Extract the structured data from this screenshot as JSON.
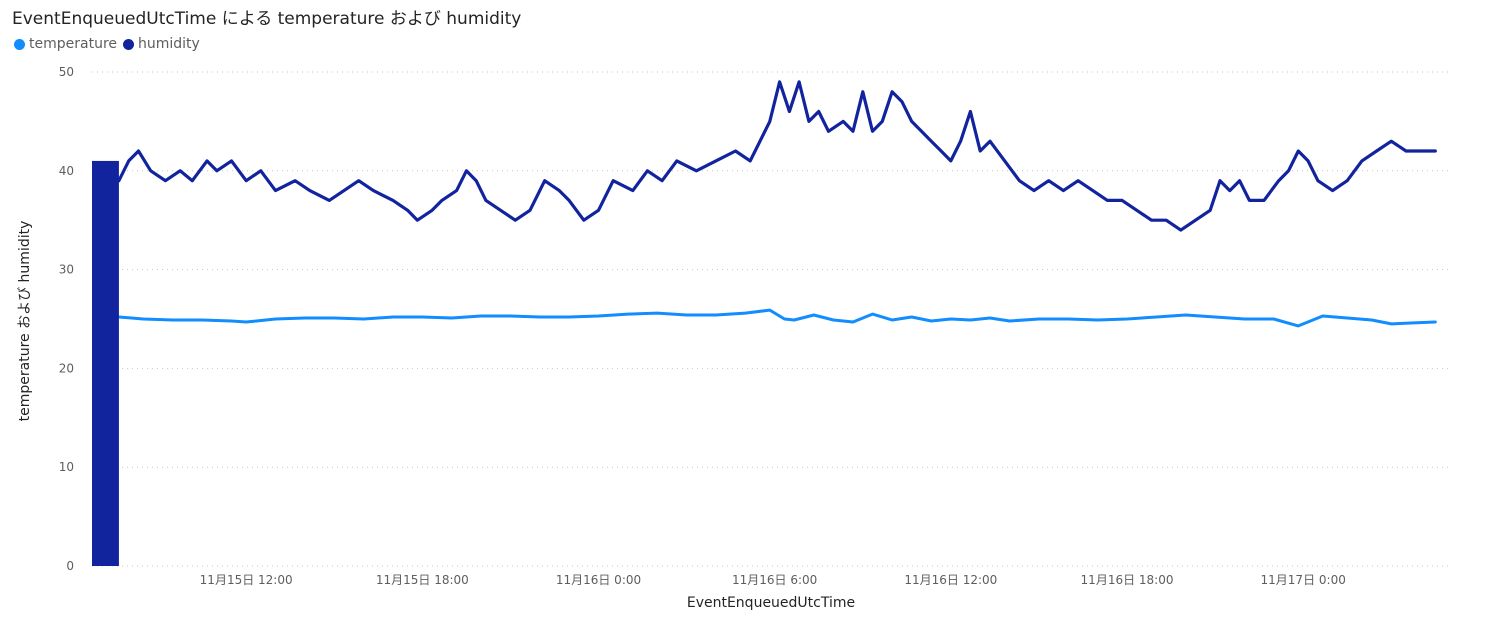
{
  "chart_data": {
    "type": "line",
    "title": "EventEnqueuedUtcTime による temperature および humidity",
    "xlabel": "EventEnqueuedUtcTime",
    "ylabel": "temperature および humidity",
    "ylim": [
      0,
      50
    ],
    "yticks": [
      "0",
      "10",
      "20",
      "30",
      "40",
      "50"
    ],
    "xlim": [
      "2019-11-15T06:45",
      "2019-11-17T05:00"
    ],
    "xticks": [
      {
        "t": "2019-11-15T12:00",
        "label": "11月15日 12:00"
      },
      {
        "t": "2019-11-15T18:00",
        "label": "11月15日 18:00"
      },
      {
        "t": "2019-11-16T00:00",
        "label": "11月16日 0:00"
      },
      {
        "t": "2019-11-16T06:00",
        "label": "11月16日 6:00"
      },
      {
        "t": "2019-11-16T12:00",
        "label": "11月16日 12:00"
      },
      {
        "t": "2019-11-16T18:00",
        "label": "11月16日 18:00"
      },
      {
        "t": "2019-11-17T00:00",
        "label": "11月17日 0:00"
      }
    ],
    "grid": true,
    "legend_position": "top-left",
    "series": [
      {
        "name": "temperature",
        "color": "#118DFF",
        "points": [
          [
            "2019-11-15T07:40",
            25.2
          ],
          [
            "2019-11-15T08:30",
            25.0
          ],
          [
            "2019-11-15T09:30",
            24.9
          ],
          [
            "2019-11-15T10:30",
            24.9
          ],
          [
            "2019-11-15T11:30",
            24.8
          ],
          [
            "2019-11-15T12:00",
            24.7
          ],
          [
            "2019-11-15T13:00",
            25.0
          ],
          [
            "2019-11-15T14:00",
            25.1
          ],
          [
            "2019-11-15T15:00",
            25.1
          ],
          [
            "2019-11-15T16:00",
            25.0
          ],
          [
            "2019-11-15T17:00",
            25.2
          ],
          [
            "2019-11-15T18:00",
            25.2
          ],
          [
            "2019-11-15T19:00",
            25.1
          ],
          [
            "2019-11-15T20:00",
            25.3
          ],
          [
            "2019-11-15T21:00",
            25.3
          ],
          [
            "2019-11-15T22:00",
            25.2
          ],
          [
            "2019-11-15T23:00",
            25.2
          ],
          [
            "2019-11-16T00:00",
            25.3
          ],
          [
            "2019-11-16T01:00",
            25.5
          ],
          [
            "2019-11-16T02:00",
            25.6
          ],
          [
            "2019-11-16T03:00",
            25.4
          ],
          [
            "2019-11-16T04:00",
            25.4
          ],
          [
            "2019-11-16T05:00",
            25.6
          ],
          [
            "2019-11-16T05:50",
            25.9
          ],
          [
            "2019-11-16T06:20",
            25.0
          ],
          [
            "2019-11-16T06:40",
            24.9
          ],
          [
            "2019-11-16T07:20",
            25.4
          ],
          [
            "2019-11-16T08:00",
            24.9
          ],
          [
            "2019-11-16T08:40",
            24.7
          ],
          [
            "2019-11-16T09:20",
            25.5
          ],
          [
            "2019-11-16T10:00",
            24.9
          ],
          [
            "2019-11-16T10:40",
            25.2
          ],
          [
            "2019-11-16T11:20",
            24.8
          ],
          [
            "2019-11-16T12:00",
            25.0
          ],
          [
            "2019-11-16T12:40",
            24.9
          ],
          [
            "2019-11-16T13:20",
            25.1
          ],
          [
            "2019-11-16T14:00",
            24.8
          ],
          [
            "2019-11-16T15:00",
            25.0
          ],
          [
            "2019-11-16T16:00",
            25.0
          ],
          [
            "2019-11-16T17:00",
            24.9
          ],
          [
            "2019-11-16T18:00",
            25.0
          ],
          [
            "2019-11-16T19:00",
            25.2
          ],
          [
            "2019-11-16T20:00",
            25.4
          ],
          [
            "2019-11-16T21:00",
            25.2
          ],
          [
            "2019-11-16T22:00",
            25.0
          ],
          [
            "2019-11-16T23:00",
            25.0
          ],
          [
            "2019-11-16T23:50",
            24.3
          ],
          [
            "2019-11-17T00:40",
            25.3
          ],
          [
            "2019-11-17T01:30",
            25.1
          ],
          [
            "2019-11-17T02:20",
            24.9
          ],
          [
            "2019-11-17T03:00",
            24.5
          ],
          [
            "2019-11-17T03:40",
            24.6
          ],
          [
            "2019-11-17T04:30",
            24.7
          ]
        ]
      },
      {
        "name": "humidity",
        "color": "#12239E",
        "points": [
          [
            "2019-11-15T07:40",
            39
          ],
          [
            "2019-11-15T08:00",
            41
          ],
          [
            "2019-11-15T08:20",
            42
          ],
          [
            "2019-11-15T08:45",
            40
          ],
          [
            "2019-11-15T09:15",
            39
          ],
          [
            "2019-11-15T09:45",
            40
          ],
          [
            "2019-11-15T10:10",
            39
          ],
          [
            "2019-11-15T10:40",
            41
          ],
          [
            "2019-11-15T11:00",
            40
          ],
          [
            "2019-11-15T11:30",
            41
          ],
          [
            "2019-11-15T12:00",
            39
          ],
          [
            "2019-11-15T12:30",
            40
          ],
          [
            "2019-11-15T13:00",
            38
          ],
          [
            "2019-11-15T13:40",
            39
          ],
          [
            "2019-11-15T14:10",
            38
          ],
          [
            "2019-11-15T14:50",
            37
          ],
          [
            "2019-11-15T15:20",
            38
          ],
          [
            "2019-11-15T15:50",
            39
          ],
          [
            "2019-11-15T16:20",
            38
          ],
          [
            "2019-11-15T17:00",
            37
          ],
          [
            "2019-11-15T17:30",
            36
          ],
          [
            "2019-11-15T17:50",
            35
          ],
          [
            "2019-11-15T18:20",
            36
          ],
          [
            "2019-11-15T18:40",
            37
          ],
          [
            "2019-11-15T19:10",
            38
          ],
          [
            "2019-11-15T19:30",
            40
          ],
          [
            "2019-11-15T19:50",
            39
          ],
          [
            "2019-11-15T20:10",
            37
          ],
          [
            "2019-11-15T20:40",
            36
          ],
          [
            "2019-11-15T21:10",
            35
          ],
          [
            "2019-11-15T21:40",
            36
          ],
          [
            "2019-11-15T22:10",
            39
          ],
          [
            "2019-11-15T22:40",
            38
          ],
          [
            "2019-11-15T23:00",
            37
          ],
          [
            "2019-11-15T23:30",
            35
          ],
          [
            "2019-11-16T00:00",
            36
          ],
          [
            "2019-11-16T00:30",
            39
          ],
          [
            "2019-11-16T01:10",
            38
          ],
          [
            "2019-11-16T01:40",
            40
          ],
          [
            "2019-11-16T02:10",
            39
          ],
          [
            "2019-11-16T02:40",
            41
          ],
          [
            "2019-11-16T03:20",
            40
          ],
          [
            "2019-11-16T04:00",
            41
          ],
          [
            "2019-11-16T04:40",
            42
          ],
          [
            "2019-11-16T05:10",
            41
          ],
          [
            "2019-11-16T05:30",
            43
          ],
          [
            "2019-11-16T05:50",
            45
          ],
          [
            "2019-11-16T06:10",
            49
          ],
          [
            "2019-11-16T06:30",
            46
          ],
          [
            "2019-11-16T06:50",
            49
          ],
          [
            "2019-11-16T07:10",
            45
          ],
          [
            "2019-11-16T07:30",
            46
          ],
          [
            "2019-11-16T07:50",
            44
          ],
          [
            "2019-11-16T08:20",
            45
          ],
          [
            "2019-11-16T08:40",
            44
          ],
          [
            "2019-11-16T09:00",
            48
          ],
          [
            "2019-11-16T09:20",
            44
          ],
          [
            "2019-11-16T09:40",
            45
          ],
          [
            "2019-11-16T10:00",
            48
          ],
          [
            "2019-11-16T10:20",
            47
          ],
          [
            "2019-11-16T10:40",
            45
          ],
          [
            "2019-11-16T11:00",
            44
          ],
          [
            "2019-11-16T11:20",
            43
          ],
          [
            "2019-11-16T11:40",
            42
          ],
          [
            "2019-11-16T12:00",
            41
          ],
          [
            "2019-11-16T12:20",
            43
          ],
          [
            "2019-11-16T12:40",
            46
          ],
          [
            "2019-11-16T13:00",
            42
          ],
          [
            "2019-11-16T13:20",
            43
          ],
          [
            "2019-11-16T13:50",
            41
          ],
          [
            "2019-11-16T14:20",
            39
          ],
          [
            "2019-11-16T14:50",
            38
          ],
          [
            "2019-11-16T15:20",
            39
          ],
          [
            "2019-11-16T15:50",
            38
          ],
          [
            "2019-11-16T16:20",
            39
          ],
          [
            "2019-11-16T16:50",
            38
          ],
          [
            "2019-11-16T17:20",
            37
          ],
          [
            "2019-11-16T17:50",
            37
          ],
          [
            "2019-11-16T18:20",
            36
          ],
          [
            "2019-11-16T18:50",
            35
          ],
          [
            "2019-11-16T19:20",
            35
          ],
          [
            "2019-11-16T19:50",
            34
          ],
          [
            "2019-11-16T20:20",
            35
          ],
          [
            "2019-11-16T20:50",
            36
          ],
          [
            "2019-11-16T21:10",
            39
          ],
          [
            "2019-11-16T21:30",
            38
          ],
          [
            "2019-11-16T21:50",
            39
          ],
          [
            "2019-11-16T22:10",
            37
          ],
          [
            "2019-11-16T22:40",
            37
          ],
          [
            "2019-11-16T23:10",
            39
          ],
          [
            "2019-11-16T23:30",
            40
          ],
          [
            "2019-11-16T23:50",
            42
          ],
          [
            "2019-11-17T00:10",
            41
          ],
          [
            "2019-11-17T00:30",
            39
          ],
          [
            "2019-11-17T01:00",
            38
          ],
          [
            "2019-11-17T01:30",
            39
          ],
          [
            "2019-11-17T02:00",
            41
          ],
          [
            "2019-11-17T02:30",
            42
          ],
          [
            "2019-11-17T03:00",
            43
          ],
          [
            "2019-11-17T03:30",
            42
          ],
          [
            "2019-11-17T04:00",
            42
          ],
          [
            "2019-11-17T04:30",
            42
          ]
        ],
        "startup_band": {
          "from": "2019-11-15T06:45",
          "to": "2019-11-15T07:40",
          "low": 0,
          "high": 41
        }
      }
    ]
  }
}
